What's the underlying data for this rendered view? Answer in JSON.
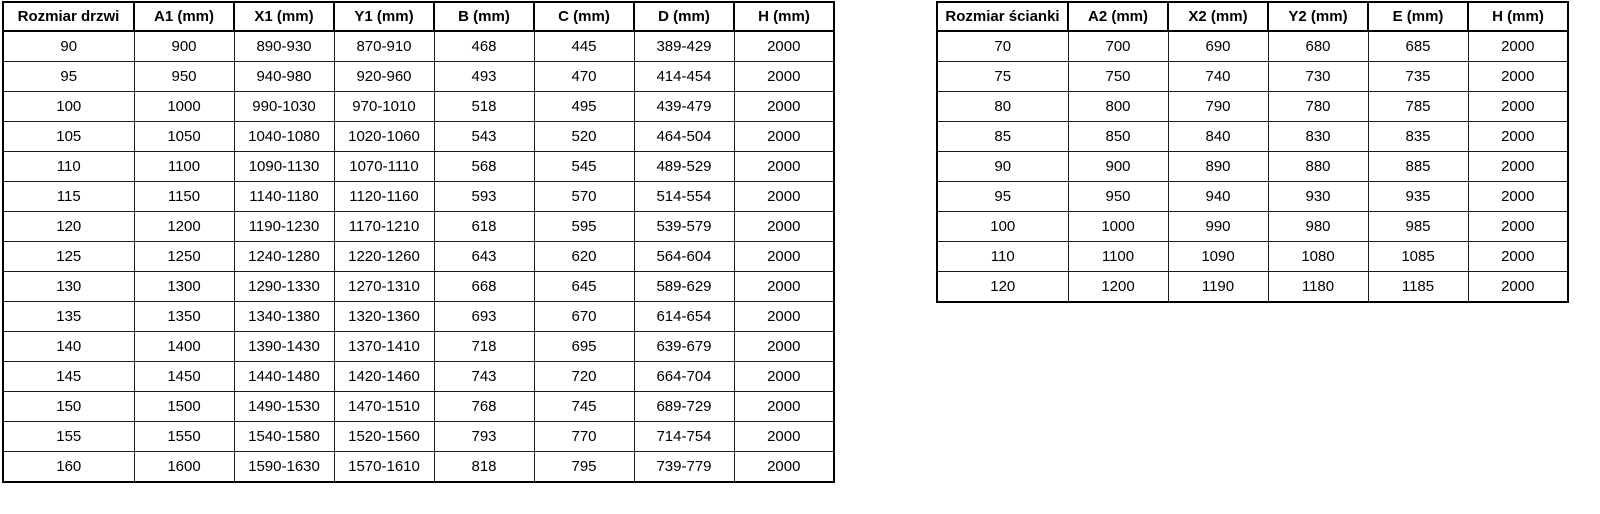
{
  "page": {
    "background_color": "#ffffff",
    "border_color": "#000000",
    "text_color": "#000000"
  },
  "door_table": {
    "headers": [
      "Rozmiar drzwi",
      "A1 (mm)",
      "X1 (mm)",
      "Y1 (mm)",
      "B (mm)",
      "C (mm)",
      "D (mm)",
      "H (mm)"
    ],
    "rows": [
      [
        "90",
        "900",
        "890-930",
        "870-910",
        "468",
        "445",
        "389-429",
        "2000"
      ],
      [
        "95",
        "950",
        "940-980",
        "920-960",
        "493",
        "470",
        "414-454",
        "2000"
      ],
      [
        "100",
        "1000",
        "990-1030",
        "970-1010",
        "518",
        "495",
        "439-479",
        "2000"
      ],
      [
        "105",
        "1050",
        "1040-1080",
        "1020-1060",
        "543",
        "520",
        "464-504",
        "2000"
      ],
      [
        "110",
        "1100",
        "1090-1130",
        "1070-1110",
        "568",
        "545",
        "489-529",
        "2000"
      ],
      [
        "115",
        "1150",
        "1140-1180",
        "1120-1160",
        "593",
        "570",
        "514-554",
        "2000"
      ],
      [
        "120",
        "1200",
        "1190-1230",
        "1170-1210",
        "618",
        "595",
        "539-579",
        "2000"
      ],
      [
        "125",
        "1250",
        "1240-1280",
        "1220-1260",
        "643",
        "620",
        "564-604",
        "2000"
      ],
      [
        "130",
        "1300",
        "1290-1330",
        "1270-1310",
        "668",
        "645",
        "589-629",
        "2000"
      ],
      [
        "135",
        "1350",
        "1340-1380",
        "1320-1360",
        "693",
        "670",
        "614-654",
        "2000"
      ],
      [
        "140",
        "1400",
        "1390-1430",
        "1370-1410",
        "718",
        "695",
        "639-679",
        "2000"
      ],
      [
        "145",
        "1450",
        "1440-1480",
        "1420-1460",
        "743",
        "720",
        "664-704",
        "2000"
      ],
      [
        "150",
        "1500",
        "1490-1530",
        "1470-1510",
        "768",
        "745",
        "689-729",
        "2000"
      ],
      [
        "155",
        "1550",
        "1540-1580",
        "1520-1560",
        "793",
        "770",
        "714-754",
        "2000"
      ],
      [
        "160",
        "1600",
        "1590-1630",
        "1570-1610",
        "818",
        "795",
        "739-779",
        "2000"
      ]
    ]
  },
  "wall_table": {
    "headers": [
      "Rozmiar ścianki",
      "A2 (mm)",
      "X2 (mm)",
      "Y2 (mm)",
      "E (mm)",
      "H (mm)"
    ],
    "rows": [
      [
        "70",
        "700",
        "690",
        "680",
        "685",
        "2000"
      ],
      [
        "75",
        "750",
        "740",
        "730",
        "735",
        "2000"
      ],
      [
        "80",
        "800",
        "790",
        "780",
        "785",
        "2000"
      ],
      [
        "85",
        "850",
        "840",
        "830",
        "835",
        "2000"
      ],
      [
        "90",
        "900",
        "890",
        "880",
        "885",
        "2000"
      ],
      [
        "95",
        "950",
        "940",
        "930",
        "935",
        "2000"
      ],
      [
        "100",
        "1000",
        "990",
        "980",
        "985",
        "2000"
      ],
      [
        "110",
        "1100",
        "1090",
        "1080",
        "1085",
        "2000"
      ],
      [
        "120",
        "1200",
        "1190",
        "1180",
        "1185",
        "2000"
      ]
    ]
  }
}
